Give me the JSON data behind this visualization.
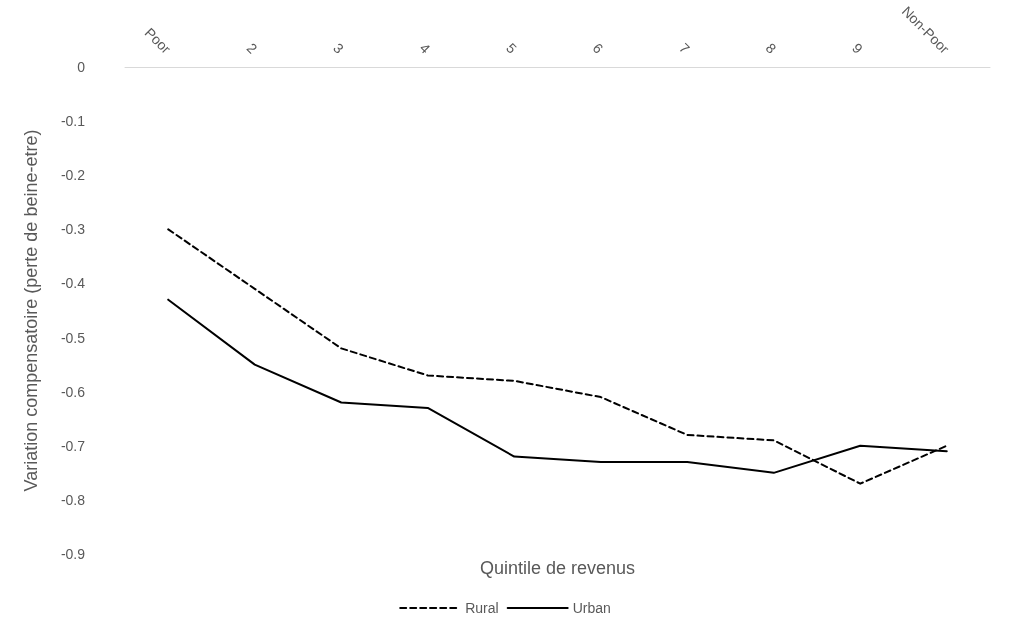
{
  "chart_data": {
    "type": "line",
    "xlabel": "Quintile de revenus",
    "ylabel": "Variation compensatoire (perte de beine-etre)",
    "categories": [
      "Poor",
      "2",
      "3",
      "4",
      "5",
      "6",
      "7",
      "8",
      "9",
      "Non-Poor"
    ],
    "series": [
      {
        "name": "Rural",
        "color": "#000000",
        "line_style": "dashed",
        "values": [
          -0.3,
          -0.41,
          -0.52,
          -0.57,
          -0.58,
          -0.61,
          -0.68,
          -0.69,
          -0.77,
          -0.7
        ]
      },
      {
        "name": "Urban",
        "color": "#000000",
        "line_style": "solid",
        "values": [
          -0.43,
          -0.55,
          -0.62,
          -0.63,
          -0.72,
          -0.73,
          -0.73,
          -0.75,
          -0.7,
          -0.71
        ]
      }
    ],
    "ylim": [
      -0.9,
      0
    ],
    "yticks": [
      -0.9,
      -0.8,
      -0.7,
      -0.6,
      -0.5,
      -0.4,
      -0.3,
      -0.2,
      -0.1,
      0
    ],
    "grid": false,
    "legend": "bottom",
    "marker": "none"
  }
}
